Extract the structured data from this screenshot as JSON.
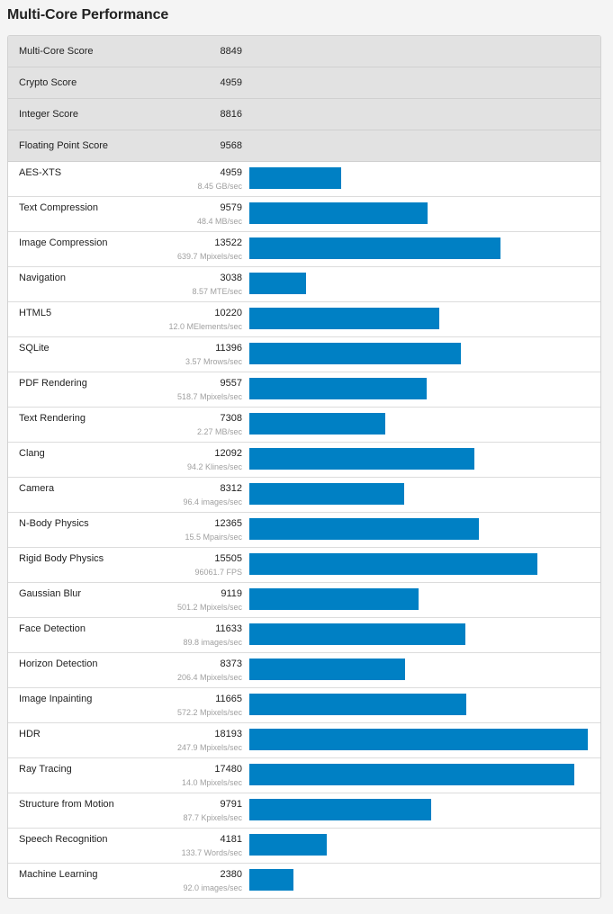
{
  "title": "Multi-Core Performance",
  "colors": {
    "bar": "#0080c4",
    "summary_bg": "#e2e2e2"
  },
  "bar_scale_max": 18500,
  "summary": [
    {
      "label": "Multi-Core Score",
      "value": "8849"
    },
    {
      "label": "Crypto Score",
      "value": "4959"
    },
    {
      "label": "Integer Score",
      "value": "8816"
    },
    {
      "label": "Floating Point Score",
      "value": "9568"
    }
  ],
  "benchmarks": [
    {
      "label": "AES-XTS",
      "score": 4959,
      "score_text": "4959",
      "detail": "8.45 GB/sec"
    },
    {
      "label": "Text Compression",
      "score": 9579,
      "score_text": "9579",
      "detail": "48.4 MB/sec"
    },
    {
      "label": "Image Compression",
      "score": 13522,
      "score_text": "13522",
      "detail": "639.7 Mpixels/sec"
    },
    {
      "label": "Navigation",
      "score": 3038,
      "score_text": "3038",
      "detail": "8.57 MTE/sec"
    },
    {
      "label": "HTML5",
      "score": 10220,
      "score_text": "10220",
      "detail": "12.0 MElements/sec"
    },
    {
      "label": "SQLite",
      "score": 11396,
      "score_text": "11396",
      "detail": "3.57 Mrows/sec"
    },
    {
      "label": "PDF Rendering",
      "score": 9557,
      "score_text": "9557",
      "detail": "518.7 Mpixels/sec"
    },
    {
      "label": "Text Rendering",
      "score": 7308,
      "score_text": "7308",
      "detail": "2.27 MB/sec"
    },
    {
      "label": "Clang",
      "score": 12092,
      "score_text": "12092",
      "detail": "94.2 Klines/sec"
    },
    {
      "label": "Camera",
      "score": 8312,
      "score_text": "8312",
      "detail": "96.4 images/sec"
    },
    {
      "label": "N-Body Physics",
      "score": 12365,
      "score_text": "12365",
      "detail": "15.5 Mpairs/sec"
    },
    {
      "label": "Rigid Body Physics",
      "score": 15505,
      "score_text": "15505",
      "detail": "96061.7 FPS"
    },
    {
      "label": "Gaussian Blur",
      "score": 9119,
      "score_text": "9119",
      "detail": "501.2 Mpixels/sec"
    },
    {
      "label": "Face Detection",
      "score": 11633,
      "score_text": "11633",
      "detail": "89.8 images/sec"
    },
    {
      "label": "Horizon Detection",
      "score": 8373,
      "score_text": "8373",
      "detail": "206.4 Mpixels/sec"
    },
    {
      "label": "Image Inpainting",
      "score": 11665,
      "score_text": "11665",
      "detail": "572.2 Mpixels/sec"
    },
    {
      "label": "HDR",
      "score": 18193,
      "score_text": "18193",
      "detail": "247.9 Mpixels/sec"
    },
    {
      "label": "Ray Tracing",
      "score": 17480,
      "score_text": "17480",
      "detail": "14.0 Mpixels/sec"
    },
    {
      "label": "Structure from Motion",
      "score": 9791,
      "score_text": "9791",
      "detail": "87.7 Kpixels/sec"
    },
    {
      "label": "Speech Recognition",
      "score": 4181,
      "score_text": "4181",
      "detail": "133.7 Words/sec"
    },
    {
      "label": "Machine Learning",
      "score": 2380,
      "score_text": "2380",
      "detail": "92.0 images/sec"
    }
  ]
}
